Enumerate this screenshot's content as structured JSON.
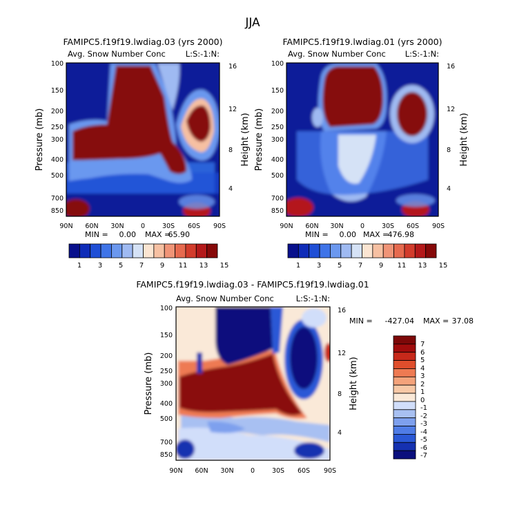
{
  "page_title": "JJA",
  "colors": {
    "seq": [
      "#08108c",
      "#0f2cb8",
      "#1f4fd6",
      "#3f74e8",
      "#6b98ef",
      "#9fbaf2",
      "#d5e2f6",
      "#fbe5d2",
      "#f6c0a2",
      "#f09477",
      "#e66a4f",
      "#d23c2c",
      "#b4191a",
      "#860909"
    ],
    "div": [
      "#0a0f7d",
      "#1531b0",
      "#2a58d6",
      "#4f7ce6",
      "#7ea0ee",
      "#a8c0f2",
      "#d1defa",
      "#fae9d8",
      "#f8c9a7",
      "#f4a37b",
      "#ee7a52",
      "#df4e2c",
      "#c7291a",
      "#a00c0c",
      "#7d0808"
    ]
  },
  "chart_data": [
    {
      "type": "heatmap",
      "title": "FAMIPC5.f19f19.lwdiag.03 (yrs 2000)",
      "subtitle_left": "Avg. Snow Number Conc",
      "subtitle_right": "L:S:-1:N:",
      "xlabel": "",
      "ylabel": "Pressure (mb)",
      "ylabel_right": "Height (km)",
      "x_ticks": [
        "90N",
        "60N",
        "30N",
        "0",
        "30S",
        "60S",
        "90S"
      ],
      "y_ticks": [
        "100",
        "150",
        "200",
        "250",
        "300",
        "400",
        "500",
        "700",
        "850"
      ],
      "y_ticks_right": [
        "16",
        "12",
        "8",
        "4"
      ],
      "xlim": [
        90,
        -90
      ],
      "ylim": [
        100,
        900
      ],
      "min_label": "MIN =",
      "min_value": "0.00",
      "max_label": "MAX =",
      "max_value": "65.90",
      "colorbar_labels": [
        "1",
        "3",
        "5",
        "7",
        "9",
        "11",
        "13",
        "15"
      ],
      "colorbar_levels": [
        0,
        1,
        2,
        3,
        4,
        5,
        6,
        7,
        8,
        9,
        10,
        11,
        12,
        13,
        14,
        15
      ]
    },
    {
      "type": "heatmap",
      "title": "FAMIPC5.f19f19.lwdiag.01 (yrs 2000)",
      "subtitle_left": "Avg. Snow Number Conc",
      "subtitle_right": "L:S:-1:N:",
      "xlabel": "",
      "ylabel": "Pressure (mb)",
      "ylabel_right": "Height (km)",
      "x_ticks": [
        "90N",
        "60N",
        "30N",
        "0",
        "30S",
        "60S",
        "90S"
      ],
      "y_ticks": [
        "100",
        "150",
        "200",
        "250",
        "300",
        "400",
        "500",
        "700",
        "850"
      ],
      "y_ticks_right": [
        "16",
        "12",
        "8",
        "4"
      ],
      "xlim": [
        90,
        -90
      ],
      "ylim": [
        100,
        900
      ],
      "min_label": "MIN =",
      "min_value": "0.00",
      "max_label": "MAX =",
      "max_value": "476.98",
      "colorbar_labels": [
        "1",
        "3",
        "5",
        "7",
        "9",
        "11",
        "13",
        "15"
      ],
      "colorbar_levels": [
        0,
        1,
        2,
        3,
        4,
        5,
        6,
        7,
        8,
        9,
        10,
        11,
        12,
        13,
        14,
        15
      ]
    },
    {
      "type": "heatmap",
      "title": "FAMIPC5.f19f19.lwdiag.03 - FAMIPC5.f19f19.lwdiag.01",
      "subtitle_left": "Avg. Snow Number Conc",
      "subtitle_right": "L:S:-1:N:",
      "xlabel": "",
      "ylabel": "Pressure (mb)",
      "ylabel_right": "Height (km)",
      "x_ticks": [
        "90N",
        "60N",
        "30N",
        "0",
        "30S",
        "60S",
        "90S"
      ],
      "y_ticks": [
        "100",
        "150",
        "200",
        "250",
        "300",
        "400",
        "500",
        "700",
        "850"
      ],
      "y_ticks_right": [
        "16",
        "12",
        "8",
        "4"
      ],
      "xlim": [
        90,
        -90
      ],
      "ylim": [
        100,
        900
      ],
      "min_label": "MIN =",
      "min_value": "-427.04",
      "max_label": "MAX =",
      "max_value": "37.08",
      "colorbar_labels": [
        "7",
        "6",
        "5",
        "4",
        "3",
        "2",
        "1",
        "0",
        "-1",
        "-2",
        "-3",
        "-4",
        "-5",
        "-6",
        "-7"
      ],
      "colorbar_levels": [
        -7,
        -6,
        -5,
        -4,
        -3,
        -2,
        -1,
        0,
        1,
        2,
        3,
        4,
        5,
        6,
        7
      ]
    }
  ]
}
